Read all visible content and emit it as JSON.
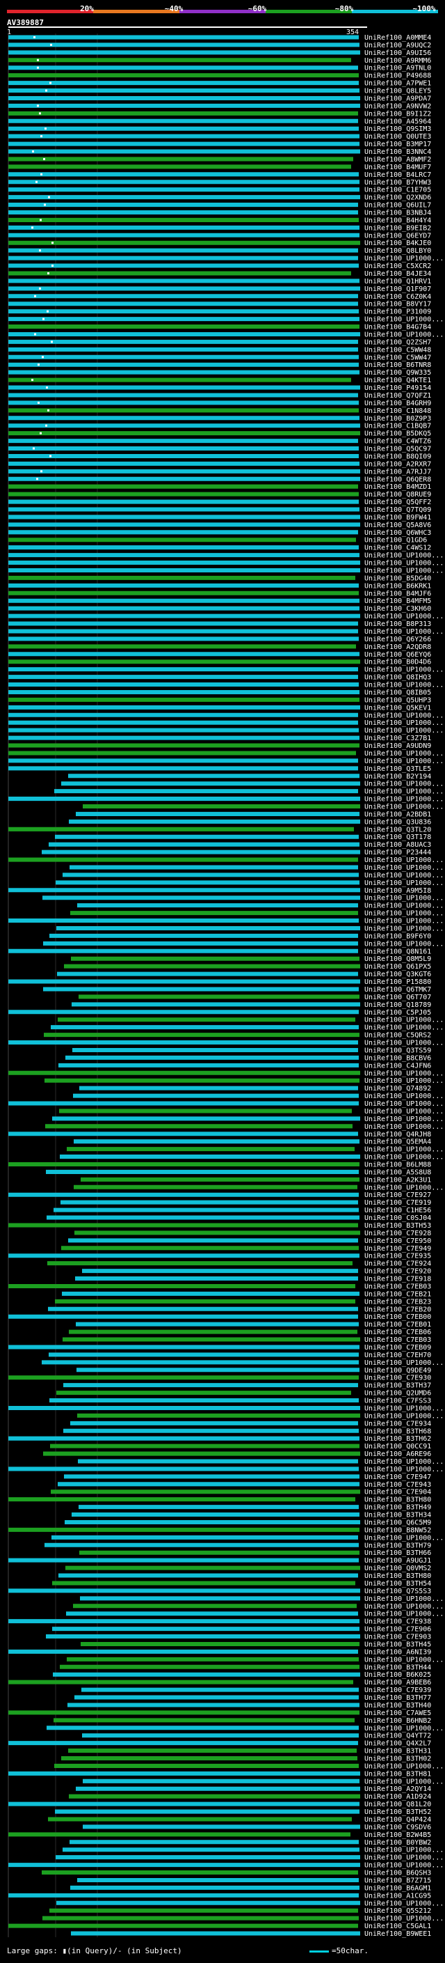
{
  "scale": {
    "labels": [
      "20%",
      "~40%",
      "~60%",
      "~80%",
      "~100%"
    ],
    "colors": [
      "#e0242c",
      "#e87820",
      "#9030c8",
      "#1ca020",
      "#10c0d8"
    ]
  },
  "query": {
    "name": "AV389887",
    "start": "1",
    "end": "354"
  },
  "legend": {
    "text": "Large gaps: ▮(in Query)/- (in Subject)",
    "key": "=50char."
  },
  "chart_data": {
    "type": "alignment-overview",
    "hits": [
      "UniRef100_A0MME4",
      "UniRef100_A9UQC2",
      "UniRef100_A9UI56",
      "UniRef100_A9RMM6",
      "UniRef100_A9TNL0",
      "UniRef100_P49688",
      "UniRef100_A7PWE1",
      "UniRef100_Q8LEY5",
      "UniRef100_A9PDA7",
      "UniRef100_A9NVW2",
      "UniRef100_B9I1Z2",
      "UniRef100_A45964",
      "UniRef100_Q9SIM3",
      "UniRef100_Q0UTE3",
      "UniRef100_B3MP17",
      "UniRef100_B3NNC4",
      "UniRef100_A8WMF2",
      "UniRef100_B4MUF7",
      "UniRef100_B4LRC7",
      "UniRef100_B7YHW3",
      "UniRef100_C1E705",
      "UniRef100_Q2XND6",
      "UniRef100_Q6UIL7",
      "UniRef100_B3NBJ4",
      "UniRef100_B4H4Y4",
      "UniRef100_B9EIB2",
      "UniRef100_Q6EYD7",
      "UniRef100_B4KJE0",
      "UniRef100_Q8LBY0",
      "UniRef100_UP1000...",
      "UniRef100_C5XCR2",
      "UniRef100_B4JE34",
      "UniRef100_Q1HRV1",
      "UniRef100_Q1F907",
      "UniRef100_C6Z0K4",
      "UniRef100_B8VY17",
      "UniRef100_P31009",
      "UniRef100_UP1000...",
      "UniRef100_B4G7B4",
      "UniRef100_UP1000...",
      "UniRef100_Q2ZSH7",
      "UniRef100_C5WW48",
      "UniRef100_C5WW47",
      "UniRef100_B6TNR8",
      "UniRef100_Q9W335",
      "UniRef100_Q4KTE1",
      "UniRef100_P49154",
      "UniRef100_Q7QFZ1",
      "UniRef100_B4GRH9",
      "UniRef100_C1N848",
      "UniRef100_B0Z9P3",
      "UniRef100_C1BQB7",
      "UniRef100_B5DKQ5",
      "UniRef100_C4WTZ6",
      "UniRef100_Q5QC97",
      "UniRef100_B8QI09",
      "UniRef100_A2RXR7",
      "UniRef100_A7RJJ7",
      "UniRef100_Q6QER8",
      "UniRef100_B4MZD1",
      "UniRef100_Q8RUE9",
      "UniRef100_Q5QFF2",
      "UniRef100_Q7TQ09",
      "UniRef100_B9FW41",
      "UniRef100_Q5A8V6",
      "UniRef100_Q6WHC3",
      "UniRef100_Q1GD6",
      "UniRef100_C4WS12",
      "UniRef100_UP1000...",
      "UniRef100_UP1000...",
      "UniRef100_UP1000...",
      "UniRef100_B5DG40",
      "UniRef100_B6KRK1",
      "UniRef100_B4MJF6",
      "UniRef100_B4MFM5",
      "UniRef100_C3KH60",
      "UniRef100_UP1000...",
      "UniRef100_B8P313",
      "UniRef100_UP1000...",
      "UniRef100_Q6Y266",
      "UniRef100_A2QDR8",
      "UniRef100_Q6EYQ6",
      "UniRef100_B0D4D6",
      "UniRef100_UP1000...",
      "UniRef100_Q8IHQ3",
      "UniRef100_UP1000...",
      "UniRef100_Q8IB05",
      "UniRef100_Q5UHP3",
      "UniRef100_Q5KEV1",
      "UniRef100_UP1000...",
      "UniRef100_UP1000...",
      "UniRef100_UP1000...",
      "UniRef100_C3Z7B1",
      "UniRef100_A9UDN9",
      "UniRef100_UP1000...",
      "UniRef100_UP1000...",
      "UniRef100_Q3TLE5",
      "UniRef100_B2Y194",
      "UniRef100_UP1000...",
      "UniRef100_UP1000...",
      "UniRef100_UP1000...",
      "UniRef100_UP1000...",
      "UniRef100_A2BDB1",
      "UniRef100_Q3U836",
      "UniRef100_Q3TL20",
      "UniRef100_Q3T178",
      "UniRef100_A8UAC3",
      "UniRef100_P23444",
      "UniRef100_UP1000...",
      "UniRef100_UP1000...",
      "UniRef100_UP1000...",
      "UniRef100_UP1000...",
      "UniRef100_A9M5I8",
      "UniRef100_UP1000...",
      "UniRef100_UP1000...",
      "UniRef100_UP1000...",
      "UniRef100_UP1000...",
      "UniRef100_UP1000...",
      "UniRef100_B9F6Y0",
      "UniRef100_UP1000...",
      "UniRef100_Q8N161",
      "UniRef100_Q8M5L9",
      "UniRef100_Q61PX5",
      "UniRef100_Q3KGT6",
      "UniRef100_P15880",
      "UniRef100_Q6TMK7",
      "UniRef100_Q6T707",
      "UniRef100_Q18789",
      "UniRef100_C5PJ05",
      "UniRef100_UP1000...",
      "UniRef100_UP1000...",
      "UniRef100_C5QRS2",
      "UniRef100_UP1000...",
      "UniRef100_Q3TS59",
      "UniRef100_B8CBV6",
      "UniRef100_C4JFN6",
      "UniRef100_UP1000...",
      "UniRef100_UP1000...",
      "UniRef100_Q74892",
      "UniRef100_UP1000...",
      "UniRef100_UP1000...",
      "UniRef100_UP1000...",
      "UniRef100_UP1000...",
      "UniRef100_UP1000...",
      "UniRef100_Q4RJH8",
      "UniRef100_Q5EMA4",
      "UniRef100_UP1000...",
      "UniRef100_UP1000...",
      "UniRef100_B6LM88",
      "UniRef100_A5S8U8",
      "UniRef100_A2K3U1",
      "UniRef100_UP1000...",
      "UniRef100_C7E927",
      "UniRef100_C7E919",
      "UniRef100_C1HE56",
      "UniRef100_C0SJ04",
      "UniRef100_B3TH53",
      "UniRef100_C7E928",
      "UniRef100_C7E950",
      "UniRef100_C7E949",
      "UniRef100_C7E935",
      "UniRef100_C7E924",
      "UniRef100_C7E920",
      "UniRef100_C7E918",
      "UniRef100_C7EB03",
      "UniRef100_C7EB21",
      "UniRef100_C7EB23",
      "UniRef100_C7EB20",
      "UniRef100_C7EB00",
      "UniRef100_C7EB01",
      "UniRef100_C7EB06",
      "UniRef100_C7EB03",
      "UniRef100_C7EB09",
      "UniRef100_C7EH70",
      "UniRef100_UP1000...",
      "UniRef100_Q9DE49",
      "UniRef100_C7E930",
      "UniRef100_B3TH37",
      "UniRef100_Q2UMD6",
      "UniRef100_C7FSS3",
      "UniRef100_UP1000...",
      "UniRef100_UP1000...",
      "UniRef100_C7E934",
      "UniRef100_B3TH68",
      "UniRef100_B3TH62",
      "UniRef100_Q0CC91",
      "UniRef100_A6RE96",
      "UniRef100_UP1000...",
      "UniRef100_UP1000...",
      "UniRef100_C7E947",
      "UniRef100_C7E943",
      "UniRef100_C7E904",
      "UniRef100_B3TH80",
      "UniRef100_B3TH49",
      "UniRef100_B3TH34",
      "UniRef100_Q6C5M9",
      "UniRef100_B8NW52",
      "UniRef100_UP1000...",
      "UniRef100_B3TH79",
      "UniRef100_B3TH66",
      "UniRef100_A9UGJ1",
      "UniRef100_Q0VMS2",
      "UniRef100_B3TH80",
      "UniRef100_B3TH54",
      "UniRef100_Q7S5S3",
      "UniRef100_UP1000...",
      "UniRef100_UP1000...",
      "UniRef100_UP1000...",
      "UniRef100_C7E938",
      "UniRef100_C7E906",
      "UniRef100_C7E903",
      "UniRef100_B3TH45",
      "UniRef100_A6NI39",
      "UniRef100_UP1000...",
      "UniRef100_B3TH44",
      "UniRef100_B6K025",
      "UniRef100_A9BEB6",
      "UniRef100_C7E939",
      "UniRef100_B3TH77",
      "UniRef100_B3TH40",
      "UniRef100_C7AWE5",
      "UniRef100_B6HNB2",
      "UniRef100_UP1000...",
      "UniRef100_Q4YT72",
      "UniRef100_Q4X2L7",
      "UniRef100_B3TH31",
      "UniRef100_B3TH02",
      "UniRef100_UP1000...",
      "UniRef100_B3TH81",
      "UniRef100_UP1000...",
      "UniRef100_A2QY14",
      "UniRef100_A1D924",
      "UniRef100_Q81L20",
      "UniRef100_B3TH52",
      "UniRef100_Q4P424",
      "UniRef100_C9SDV6",
      "UniRef100_B2W4B5",
      "UniRef100_B0YBW2",
      "UniRef100_UP1000...",
      "UniRef100_UP1000...",
      "UniRef100_UP1000...",
      "UniRef100_B6QSH3",
      "UniRef100_B7Z715",
      "UniRef100_B6AGM1",
      "UniRef100_A1CG95",
      "UniRef100_UP1000...",
      "UniRef100_Q5S212",
      "UniRef100_UP1000...",
      "UniRef100_C5GAL1",
      "UniRef100_B9WEE1"
    ]
  }
}
